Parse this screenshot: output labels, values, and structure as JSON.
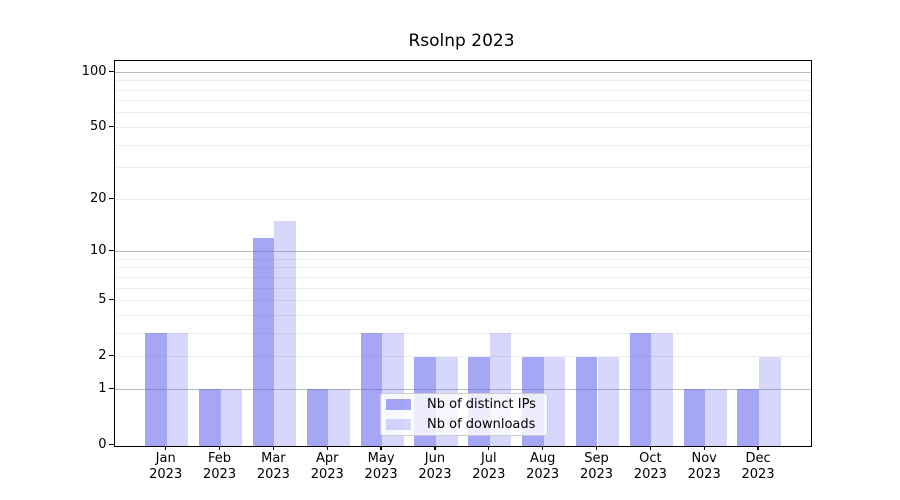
{
  "chart_data": {
    "type": "bar",
    "title": "Rsolnp 2023",
    "scale": "log1p",
    "categories": [
      "Jan 2023",
      "Feb 2023",
      "Mar 2023",
      "Apr 2023",
      "May 2023",
      "Jun 2023",
      "Jul 2023",
      "Aug 2023",
      "Sep 2023",
      "Oct 2023",
      "Nov 2023",
      "Dec 2023"
    ],
    "series": [
      {
        "name": "Nb of distinct IPs",
        "color": "rgba(102,102,242,0.58)",
        "values": [
          3,
          1,
          12,
          1,
          3,
          2,
          2,
          2,
          2,
          3,
          1,
          1
        ]
      },
      {
        "name": "Nb of downloads",
        "color": "rgba(102,102,242,0.26)",
        "values": [
          3,
          1,
          15,
          1,
          3,
          2,
          3,
          2,
          2,
          3,
          1,
          2
        ]
      }
    ],
    "yticks": [
      0,
      1,
      2,
      5,
      10,
      20,
      50,
      100
    ],
    "ylim": [
      0,
      115
    ],
    "grid": {
      "major_values": [
        1,
        10,
        100
      ],
      "minor_between_decades": true
    },
    "legend_position": "lower center",
    "xlabel": "",
    "ylabel": "",
    "axis_color": "#000000",
    "major_grid_color": "#bbbbbb",
    "minor_grid_color": "#ededed"
  }
}
